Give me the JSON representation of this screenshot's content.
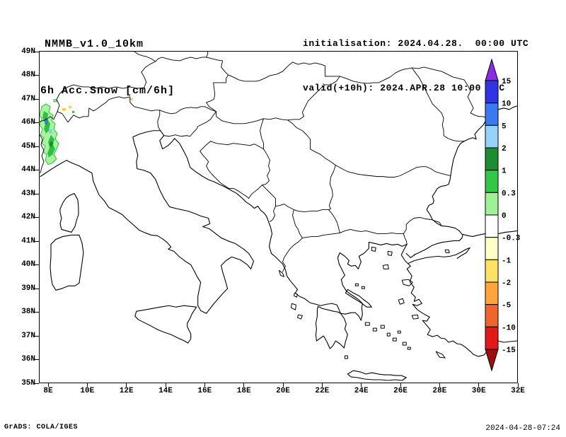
{
  "header": {
    "model": "NMMB_v1.0_10km",
    "field": "6h Acc.Snow [cm/6h]",
    "init": "initialisation: 2024.04.28.  00:00 UTC",
    "valid": "valid(+10h): 2024.APR.28 10:00 UTC"
  },
  "map": {
    "y_ticks": [
      "49N",
      "48N",
      "47N",
      "46N",
      "45N",
      "44N",
      "43N",
      "42N",
      "41N",
      "40N",
      "39N",
      "38N",
      "37N",
      "36N",
      "35N"
    ],
    "x_ticks": [
      "8E",
      "10E",
      "12E",
      "14E",
      "16E",
      "18E",
      "20E",
      "22E",
      "24E",
      "26E",
      "28E",
      "30E",
      "32E"
    ]
  },
  "colorbar": {
    "levels": [
      "15",
      "10",
      "5",
      "2",
      "1",
      "0.3",
      "0",
      "-0.3",
      "-1",
      "-2",
      "-5",
      "-10",
      "-15"
    ],
    "colors": [
      "#8a2be2",
      "#3333e6",
      "#3c78f0",
      "#96d2fa",
      "#1e8c32",
      "#32c846",
      "#a0f096",
      "#ffffff",
      "#ffffc8",
      "#ffe164",
      "#ffa53c",
      "#f0642d",
      "#e11919",
      "#9c0f0f"
    ]
  },
  "snow_colors": {
    "light": "#a8f59b",
    "green": "#2fbe46",
    "dark": "#128a2b",
    "blue": "#3c78f0",
    "skyblue": "#8ecdf7",
    "yellow": "#ffd23c"
  },
  "footer": {
    "credit": "GrADS: COLA/IGES",
    "timestamp": "2024-04-28-07:24"
  }
}
